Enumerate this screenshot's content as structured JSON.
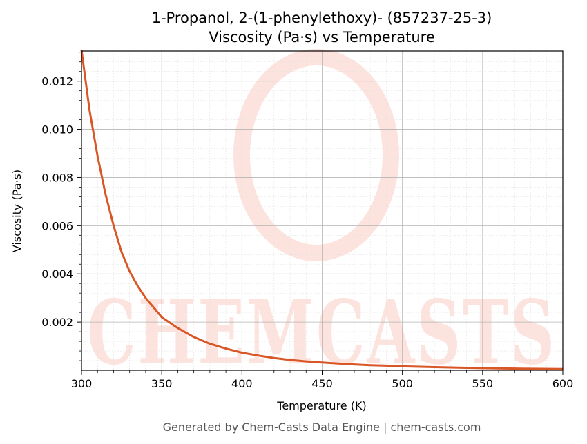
{
  "chart_data": {
    "type": "line",
    "title": "1-Propanol, 2-(1-phenylethoxy)- (857237-25-3)",
    "subtitle": "Viscosity (Pa·s) vs Temperature",
    "xlabel": "Temperature (K)",
    "ylabel": "Viscosity (Pa·s)",
    "xlim": [
      300,
      600
    ],
    "ylim": [
      0.0,
      0.01325
    ],
    "x_ticks": [
      "300",
      "350",
      "400",
      "450",
      "500",
      "550",
      "600"
    ],
    "y_ticks": [
      "0.002",
      "0.004",
      "0.006",
      "0.008",
      "0.010",
      "0.012"
    ],
    "grid": true,
    "line_color": "#d95627",
    "series": [
      {
        "x": [
          300,
          305,
          310,
          315,
          320,
          325,
          330,
          335,
          340,
          345,
          350,
          360,
          370,
          380,
          390,
          400,
          410,
          420,
          430,
          440,
          450,
          460,
          470,
          480,
          490,
          500,
          520,
          540,
          560,
          580,
          600
        ],
        "values": [
          0.0133,
          0.0108,
          0.0089,
          0.0073,
          0.006,
          0.0049,
          0.0041,
          0.0035,
          0.003,
          0.0026,
          0.0022,
          0.00175,
          0.00138,
          0.0011,
          0.0009,
          0.00073,
          0.00061,
          0.00051,
          0.00043,
          0.00037,
          0.00032,
          0.00028,
          0.00024,
          0.00021,
          0.00019,
          0.00016,
          0.00013,
          0.0001,
          8e-05,
          6e-05,
          5e-05
        ]
      }
    ]
  },
  "watermark": "CHEMCASTS",
  "footer": "Generated by Chem-Casts Data Engine | chem-casts.com"
}
